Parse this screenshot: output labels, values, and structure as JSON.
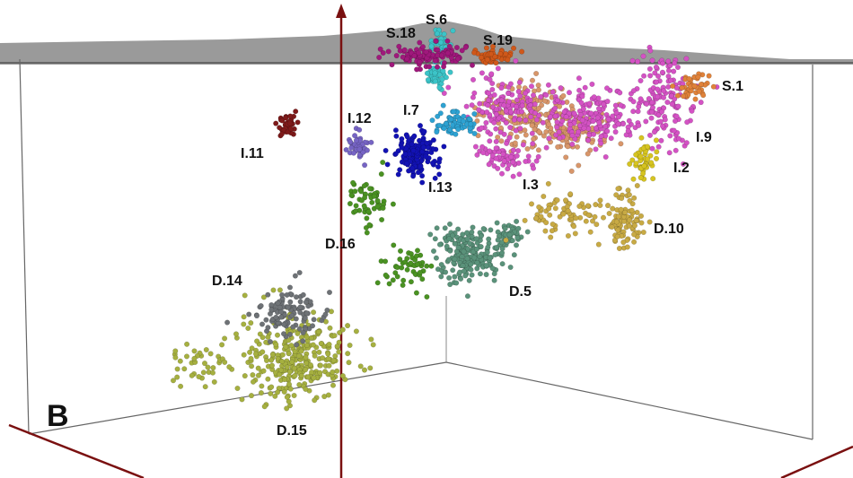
{
  "chart_data": {
    "type": "scatter",
    "projection": "3d",
    "panel_label": "B",
    "grid": false,
    "axis_color": "#7a1010",
    "silhouette_color": "#9a9a9a",
    "clusters": [
      {
        "name": "S.18",
        "color": "#a0187c"
      },
      {
        "name": "S.6",
        "color": "#3cc4c8"
      },
      {
        "name": "S.19",
        "color": "#d0581a"
      },
      {
        "name": "S.1",
        "color": "#e0823a"
      },
      {
        "name": "I.9",
        "color": "#d452c4"
      },
      {
        "name": "I.3",
        "color": "#d8966a"
      },
      {
        "name": "I.7",
        "color": "#2ea2d2"
      },
      {
        "name": "I.12",
        "color": "#7664c4"
      },
      {
        "name": "I.11",
        "color": "#7e1a1a"
      },
      {
        "name": "I.13",
        "color": "#1212b4"
      },
      {
        "name": "I.2",
        "color": "#d6c420"
      },
      {
        "name": "D.10",
        "color": "#c8aa44"
      },
      {
        "name": "D.5",
        "color": "#5a927a"
      },
      {
        "name": "D.16",
        "color": "#4a9222"
      },
      {
        "name": "D.14",
        "color": "#6e7276"
      },
      {
        "name": "D.15",
        "color": "#a6b040"
      }
    ]
  }
}
